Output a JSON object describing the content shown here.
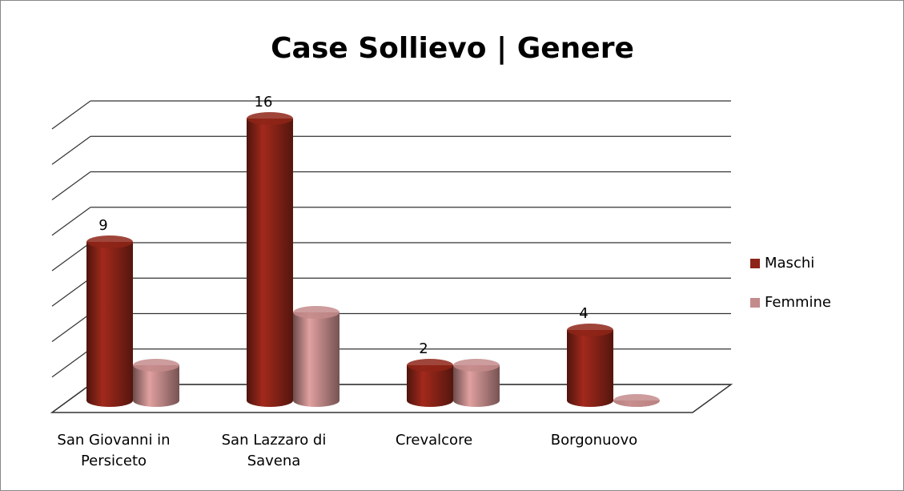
{
  "chart_data": {
    "type": "bar3d",
    "title": "Case Sollievo | Genere",
    "categories": [
      "San Giovanni in Persiceto",
      "San Lazzaro di Savena",
      "Crevalcore",
      "Borgonuovo"
    ],
    "series": [
      {
        "name": "Maschi",
        "color": "#8e2418",
        "values": [
          9,
          16,
          2,
          4
        ],
        "show_labels": true
      },
      {
        "name": "Femmine",
        "color": "#c48b8b",
        "values": [
          2,
          5,
          2,
          0
        ],
        "show_labels": false
      }
    ],
    "ylim": [
      0,
      16
    ],
    "yticks": [
      0,
      2,
      4,
      6,
      8,
      10,
      12,
      14,
      16
    ],
    "grid": true,
    "legend": "right"
  }
}
